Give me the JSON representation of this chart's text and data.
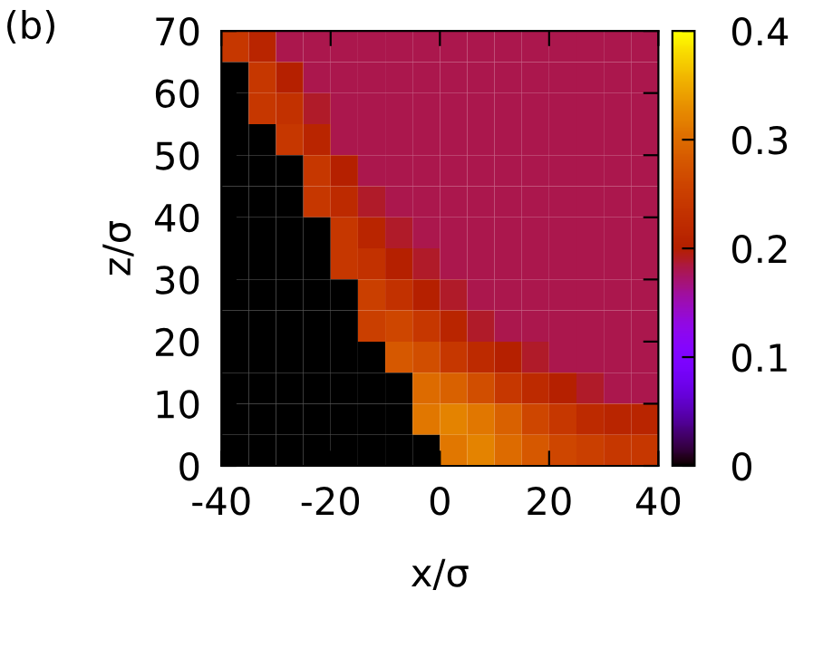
{
  "chart_data": {
    "type": "heatmap",
    "xlabel": "x/σ",
    "ylabel": "z/σ",
    "annotations": [
      "(b)"
    ],
    "x": [
      -37.5,
      -32.5,
      -27.5,
      -22.5,
      -17.5,
      -12.5,
      -7.5,
      -2.5,
      2.5,
      7.5,
      12.5,
      17.5,
      22.5,
      27.5,
      32.5,
      37.5
    ],
    "cells": [
      [
        0.24,
        0.21,
        0.18,
        0.18,
        0.18,
        0.18,
        0.18,
        0.18,
        0.18,
        0.18,
        0.18,
        0.18,
        0.18,
        0.18,
        0.18,
        0.18
      ],
      [
        0,
        0.24,
        0.2,
        0.18,
        0.18,
        0.18,
        0.18,
        0.18,
        0.18,
        0.18,
        0.18,
        0.18,
        0.18,
        0.18,
        0.18,
        0.18
      ],
      [
        0,
        0.24,
        0.23,
        0.19,
        0.18,
        0.18,
        0.18,
        0.18,
        0.18,
        0.18,
        0.18,
        0.18,
        0.18,
        0.18,
        0.18,
        0.18
      ],
      [
        0,
        0,
        0.24,
        0.21,
        0.18,
        0.18,
        0.18,
        0.18,
        0.18,
        0.18,
        0.18,
        0.18,
        0.18,
        0.18,
        0.18,
        0.18
      ],
      [
        0,
        0,
        0,
        0.24,
        0.2,
        0.18,
        0.18,
        0.18,
        0.18,
        0.18,
        0.18,
        0.18,
        0.18,
        0.18,
        0.18,
        0.18
      ],
      [
        0,
        0,
        0,
        0.24,
        0.22,
        0.19,
        0.18,
        0.18,
        0.18,
        0.18,
        0.18,
        0.18,
        0.18,
        0.18,
        0.18,
        0.18
      ],
      [
        0,
        0,
        0,
        0,
        0.24,
        0.21,
        0.19,
        0.18,
        0.18,
        0.18,
        0.18,
        0.18,
        0.18,
        0.18,
        0.18,
        0.18
      ],
      [
        0,
        0,
        0,
        0,
        0.24,
        0.23,
        0.2,
        0.19,
        0.18,
        0.18,
        0.18,
        0.18,
        0.18,
        0.18,
        0.18,
        0.18
      ],
      [
        0,
        0,
        0,
        0,
        0,
        0.25,
        0.23,
        0.2,
        0.19,
        0.18,
        0.18,
        0.18,
        0.18,
        0.18,
        0.18,
        0.18
      ],
      [
        0,
        0,
        0,
        0,
        0,
        0.25,
        0.26,
        0.24,
        0.21,
        0.19,
        0.18,
        0.18,
        0.18,
        0.18,
        0.18,
        0.18
      ],
      [
        0,
        0,
        0,
        0,
        0,
        0,
        0.28,
        0.27,
        0.24,
        0.22,
        0.2,
        0.19,
        0.18,
        0.18,
        0.18,
        0.18
      ],
      [
        0,
        0,
        0,
        0,
        0,
        0,
        0,
        0.3,
        0.29,
        0.27,
        0.24,
        0.22,
        0.2,
        0.19,
        0.18,
        0.18
      ],
      [
        0,
        0,
        0,
        0,
        0,
        0,
        0,
        0.31,
        0.32,
        0.31,
        0.29,
        0.26,
        0.24,
        0.22,
        0.21,
        0.21
      ],
      [
        0,
        0,
        0,
        0,
        0,
        0,
        0,
        0,
        0.31,
        0.32,
        0.3,
        0.28,
        0.26,
        0.25,
        0.24,
        0.24
      ]
    ],
    "xlim": [
      -40,
      40
    ],
    "ylim": [
      0,
      70
    ],
    "xticks": [
      -40,
      -20,
      0,
      20,
      40
    ],
    "yticks": [
      0,
      10,
      20,
      30,
      40,
      50,
      60,
      70
    ],
    "clim": [
      0,
      0.4
    ],
    "cticks": [
      0,
      0.1,
      0.2,
      0.3,
      0.4
    ]
  }
}
